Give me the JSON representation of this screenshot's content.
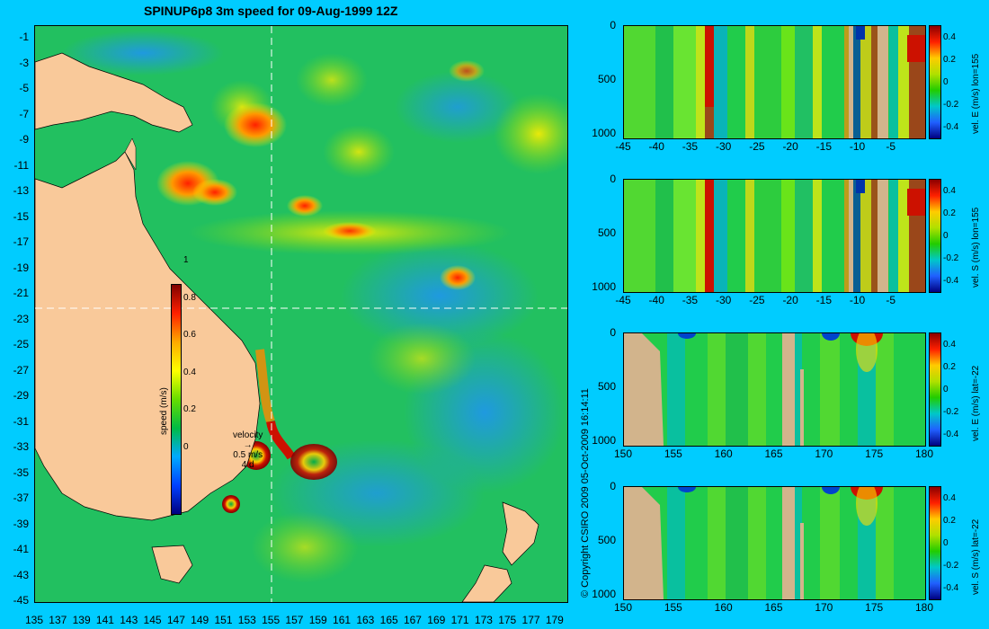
{
  "title": "SPINUP6p8 3m speed for 09-Aug-1999 12Z",
  "copyright": "© Copyright CSIRO 2009   05-Oct-2009 16:14:11",
  "map": {
    "lat_ticks": [
      "-1",
      "-3",
      "-5",
      "-7",
      "-9",
      "-11",
      "-13",
      "-15",
      "-17",
      "-19",
      "-21",
      "-23",
      "-25",
      "-27",
      "-29",
      "-31",
      "-33",
      "-35",
      "-37",
      "-39",
      "-41",
      "-43",
      "-45"
    ],
    "lon_ticks": [
      "135",
      "137",
      "139",
      "141",
      "143",
      "145",
      "147",
      "149",
      "151",
      "153",
      "155",
      "157",
      "159",
      "161",
      "163",
      "165",
      "167",
      "169",
      "171",
      "173",
      "175",
      "177",
      "179"
    ],
    "lat_range": [
      -45,
      0
    ],
    "lon_range": [
      135,
      180
    ],
    "section_lon": 155,
    "section_lat": -22,
    "colorbar": {
      "label": "speed (m/s)",
      "ticks": [
        "1",
        "0.8",
        "0.6",
        "0.4",
        "0.2",
        "0"
      ]
    },
    "velocity_key": {
      "title": "velocity",
      "speed": "0.5 m/s",
      "days": "4 d"
    }
  },
  "panels": [
    {
      "label": "vel. E (m/s) lon=155",
      "x_ticks": [
        "-45",
        "-40",
        "-35",
        "-30",
        "-25",
        "-20",
        "-15",
        "-10",
        "-5"
      ],
      "y_ticks": [
        "0",
        "500",
        "1000"
      ],
      "cb_ticks": [
        "0.4",
        "0.2",
        "0",
        "-0.2",
        "-0.4"
      ]
    },
    {
      "label": "vel. S (m/s) lon=155",
      "x_ticks": [
        "-45",
        "-40",
        "-35",
        "-30",
        "-25",
        "-20",
        "-15",
        "-10",
        "-5"
      ],
      "y_ticks": [
        "0",
        "500",
        "1000"
      ],
      "cb_ticks": [
        "0.4",
        "0.2",
        "0",
        "-0.2",
        "-0.4"
      ]
    },
    {
      "label": "vel. E (m/s) lat=-22",
      "x_ticks": [
        "150",
        "155",
        "160",
        "165",
        "170",
        "175",
        "180"
      ],
      "y_ticks": [
        "0",
        "500",
        "1000"
      ],
      "cb_ticks": [
        "0.4",
        "0.2",
        "0",
        "-0.2",
        "-0.4"
      ]
    },
    {
      "label": "vel. S (m/s) lat=-22",
      "x_ticks": [
        "150",
        "155",
        "160",
        "165",
        "170",
        "175",
        "180"
      ],
      "y_ticks": [
        "0",
        "500",
        "1000"
      ],
      "cb_ticks": [
        "0.4",
        "0.2",
        "0",
        "-0.2",
        "-0.4"
      ]
    }
  ],
  "colors": {
    "land": "#f9c99a",
    "section_land": "#d2b48c",
    "background": "#00ccff"
  }
}
